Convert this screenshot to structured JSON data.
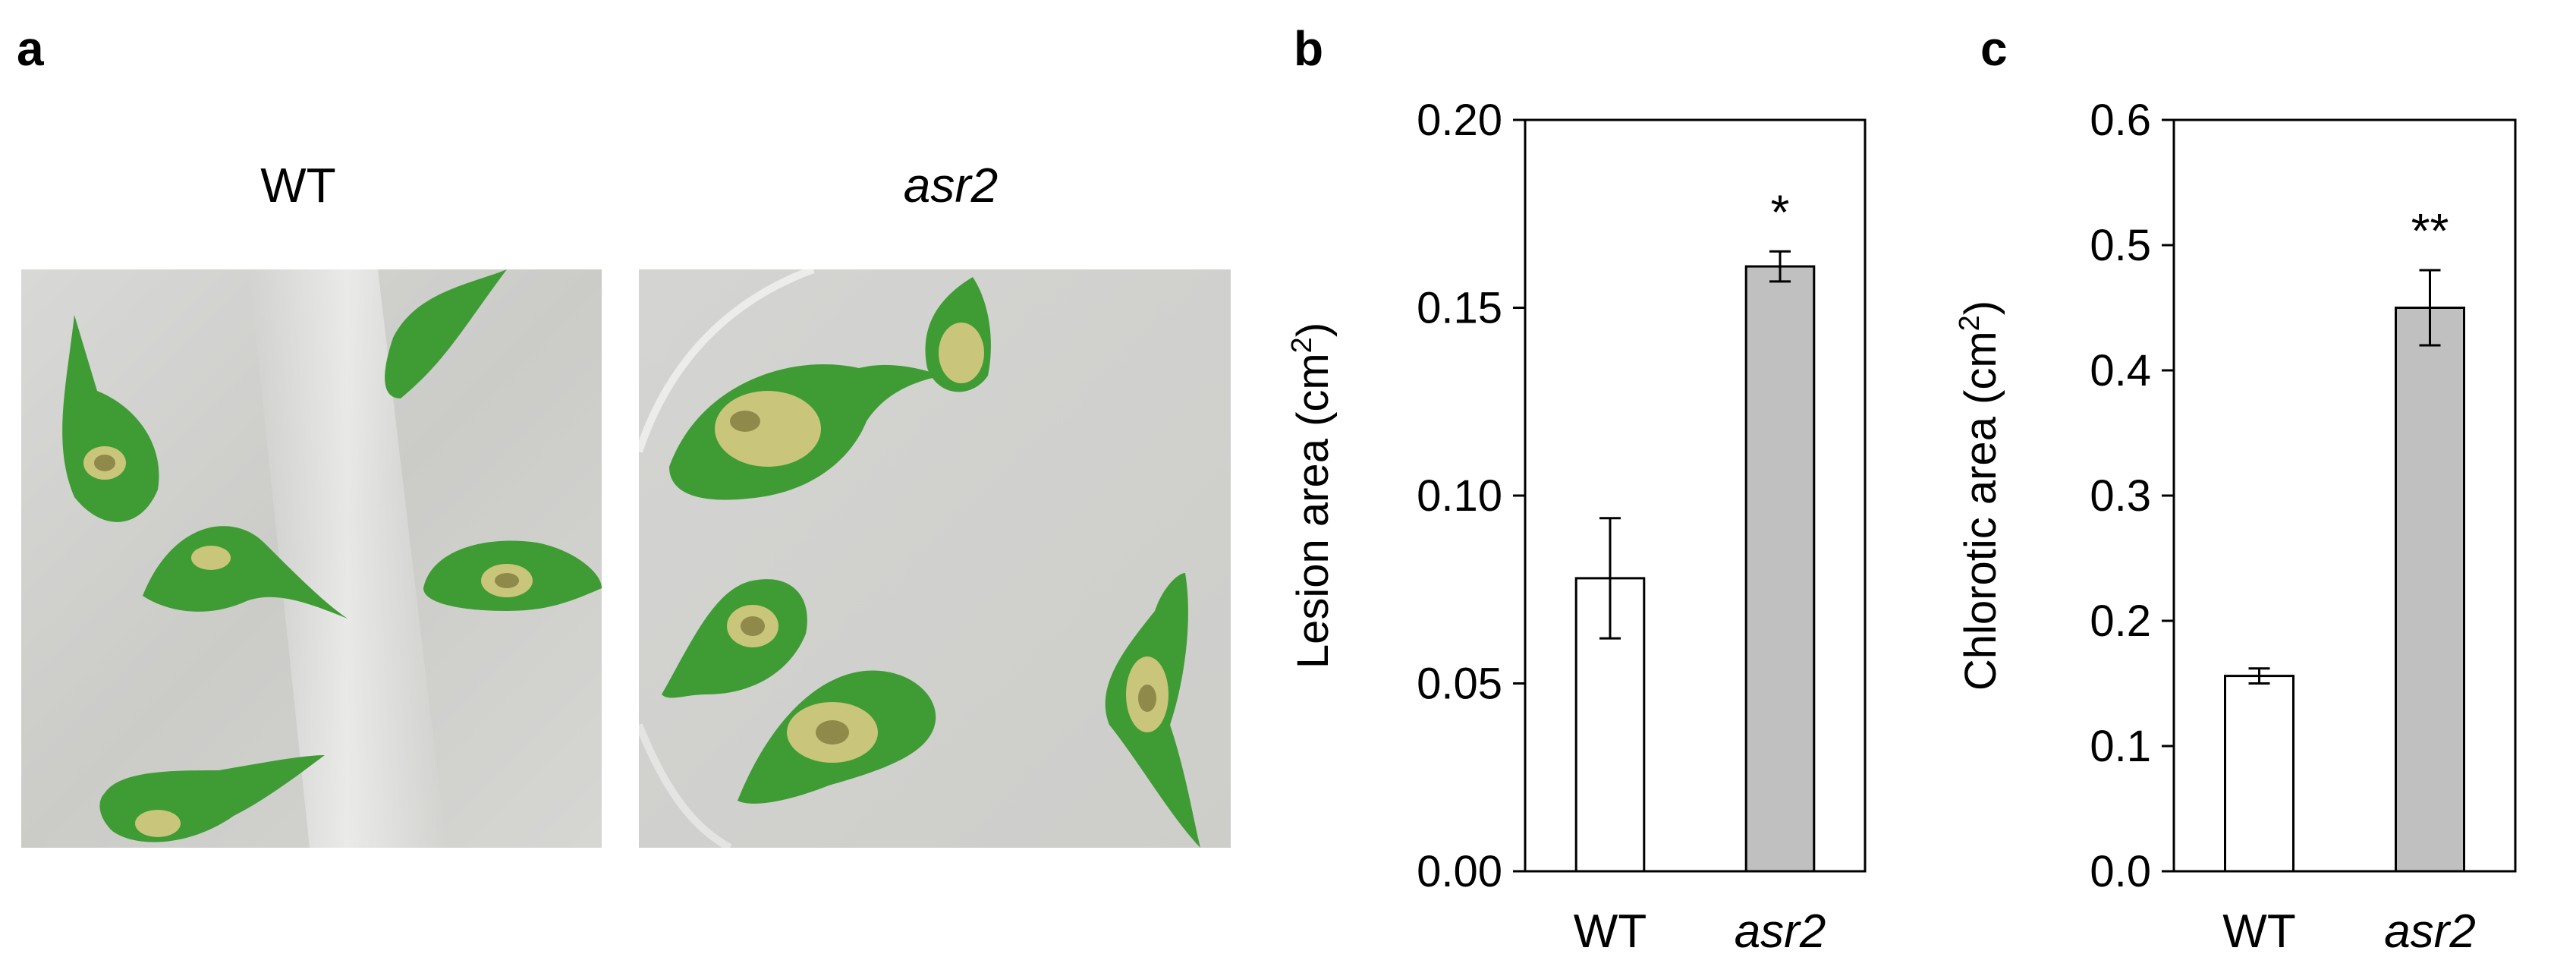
{
  "panels": {
    "a": {
      "letter": "a",
      "left_label": "WT",
      "right_label": "asr2"
    },
    "b": {
      "letter": "b"
    },
    "c": {
      "letter": "c"
    }
  },
  "photo_colors": {
    "dish": "#cfcfcd",
    "leaf": "#3f9c35",
    "leaf_dark": "#2e7d2a",
    "lesion": "#c9c57a",
    "lesion_core": "#8f8a4a"
  },
  "chart_data": [
    {
      "type": "bar",
      "categories": [
        "WT",
        "asr2"
      ],
      "italic_categories": [
        false,
        true
      ],
      "values": [
        0.078,
        0.161
      ],
      "errors": [
        0.016,
        0.004
      ],
      "significance": [
        "",
        "*"
      ],
      "bar_colors": [
        "#ffffff",
        "#c0c0c0"
      ],
      "ylabel": "Lesion area (cm2)",
      "ylabel_main": "Lesion area (cm",
      "ylabel_sup": "2",
      "ylabel_end": ")",
      "ylim": [
        0,
        0.2
      ],
      "yticks": [
        "0.00",
        "0.05",
        "0.10",
        "0.15",
        "0.20"
      ],
      "grid": false
    },
    {
      "type": "bar",
      "categories": [
        "WT",
        "asr2"
      ],
      "italic_categories": [
        false,
        true
      ],
      "values": [
        0.156,
        0.45
      ],
      "errors": [
        0.006,
        0.03
      ],
      "significance": [
        "",
        "**"
      ],
      "bar_colors": [
        "#ffffff",
        "#c0c0c0"
      ],
      "ylabel": "Chlorotic area (cm2)",
      "ylabel_main": "Chlorotic area (cm",
      "ylabel_sup": "2",
      "ylabel_end": ")",
      "ylim": [
        0,
        0.6
      ],
      "yticks": [
        "0.0",
        "0.1",
        "0.2",
        "0.3",
        "0.4",
        "0.5",
        "0.6"
      ],
      "grid": false
    }
  ]
}
